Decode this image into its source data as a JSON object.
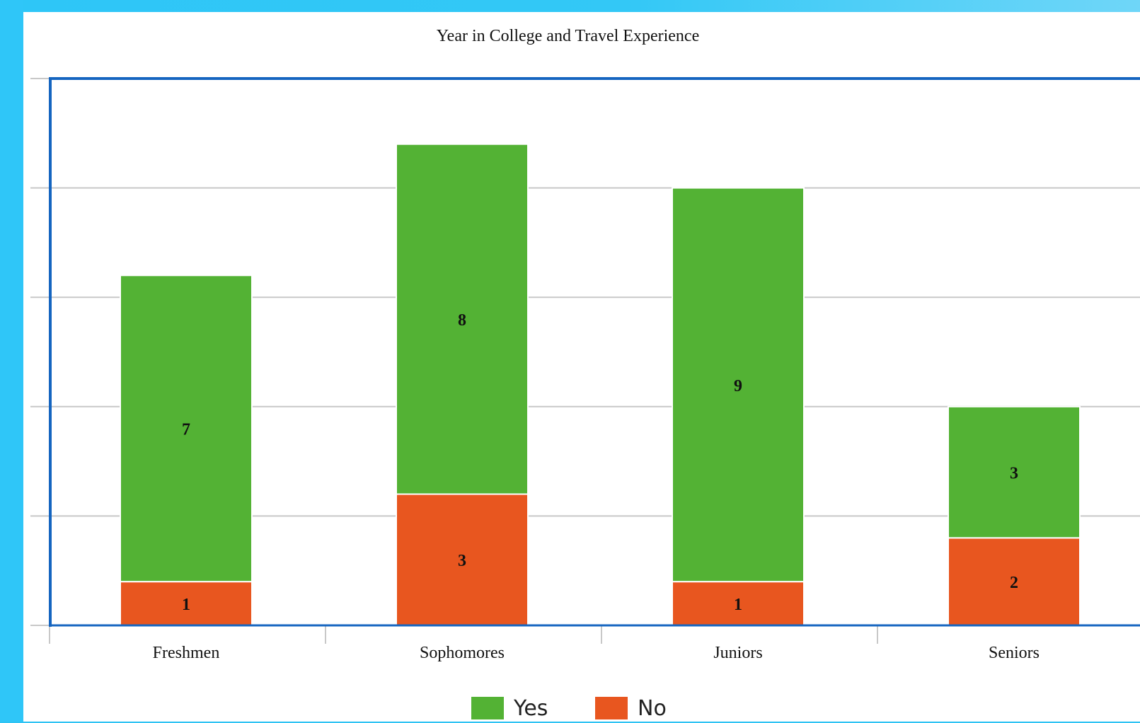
{
  "chart_data": {
    "type": "bar",
    "stacked": true,
    "title": "Year in College and Travel Experience",
    "xlabel": "",
    "ylabel": "",
    "categories": [
      "Freshmen",
      "Sophomores",
      "Juniors",
      "Seniors"
    ],
    "series": [
      {
        "name": "No",
        "values": [
          1,
          3,
          1,
          2
        ],
        "color": "#e8561f"
      },
      {
        "name": "Yes",
        "values": [
          7,
          8,
          9,
          3
        ],
        "color": "#53b234"
      }
    ],
    "ylim": [
      0,
      12.5
    ],
    "y_tick_values": [
      0,
      2.5,
      5,
      7.5,
      10,
      12.5
    ],
    "y_tick_labels_shown": false,
    "grid": true,
    "legend": "bottom-center",
    "data_labels": true
  },
  "colors": {
    "background_frame": "#2fc3f3",
    "axis": "#1565c0",
    "grid": "#c8c8c8"
  }
}
